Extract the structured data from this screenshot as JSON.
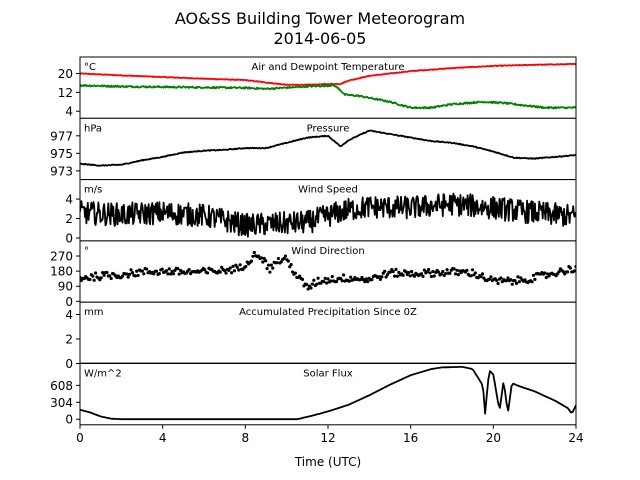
{
  "figure": {
    "title_line1": "AO&SS Building Tower Meteorogram",
    "title_line2": "2014-06-05",
    "xlabel": "Time (UTC)"
  },
  "chart_data": {
    "type": "line",
    "x_range": [
      0,
      24
    ],
    "x_ticks": [
      0,
      4,
      8,
      12,
      16,
      20,
      24
    ],
    "x_tick_labels": [
      "0",
      "4",
      "8",
      "12",
      "16",
      "20",
      "24"
    ],
    "panels": [
      {
        "id": "temp",
        "title": "Air and Dewpoint Temperature",
        "unit": "°C",
        "ylim": [
          1,
          27
        ],
        "yticks": [
          4,
          12,
          20
        ],
        "ytick_labels": [
          "4",
          "12",
          "20"
        ],
        "series": [
          {
            "color": "#ff0000",
            "style": "line",
            "noise": 0.15,
            "values": [
              [
                0,
                20
              ],
              [
                1,
                19.6
              ],
              [
                2,
                19.2
              ],
              [
                4,
                18.5
              ],
              [
                6,
                17.8
              ],
              [
                8,
                17.2
              ],
              [
                9,
                16.2
              ],
              [
                10,
                15.2
              ],
              [
                11,
                15.2
              ],
              [
                12,
                15.5
              ],
              [
                12.6,
                15.6
              ],
              [
                13,
                17
              ],
              [
                14,
                19
              ],
              [
                16,
                21
              ],
              [
                18,
                22.3
              ],
              [
                20,
                23.2
              ],
              [
                22,
                23.7
              ],
              [
                24,
                24
              ]
            ]
          },
          {
            "color": "#008000",
            "style": "line",
            "noise": 0.35,
            "values": [
              [
                0,
                15
              ],
              [
                2,
                14.5
              ],
              [
                4,
                14.3
              ],
              [
                6,
                14.1
              ],
              [
                8,
                13.9
              ],
              [
                9,
                13.5
              ],
              [
                10,
                14
              ],
              [
                11,
                14.5
              ],
              [
                12.3,
                15
              ],
              [
                12.6,
                13
              ],
              [
                12.8,
                11
              ],
              [
                13.5,
                10.5
              ],
              [
                15,
                8
              ],
              [
                16,
                5.5
              ],
              [
                17,
                5.5
              ],
              [
                18,
                7
              ],
              [
                19.5,
                8
              ],
              [
                20.5,
                7.5
              ],
              [
                21.5,
                6.5
              ],
              [
                22.5,
                5.5
              ],
              [
                24,
                5.5
              ]
            ]
          }
        ]
      },
      {
        "id": "pressure",
        "title": "Pressure",
        "unit": "hPa",
        "ylim": [
          972,
          979
        ],
        "yticks": [
          973,
          975,
          977
        ],
        "ytick_labels": [
          "973",
          "975",
          "977"
        ],
        "series": [
          {
            "color": "#000000",
            "style": "line",
            "noise": 0.05,
            "values": [
              [
                0,
                973.8
              ],
              [
                1,
                973.6
              ],
              [
                2,
                973.7
              ],
              [
                3,
                974.2
              ],
              [
                4,
                974.6
              ],
              [
                5,
                975.1
              ],
              [
                6,
                975.3
              ],
              [
                7,
                975.4
              ],
              [
                8,
                975.6
              ],
              [
                9,
                975.6
              ],
              [
                10,
                976.2
              ],
              [
                11,
                976.8
              ],
              [
                12,
                977
              ],
              [
                12.6,
                975.8
              ],
              [
                13,
                976.5
              ],
              [
                14,
                977.6
              ],
              [
                15,
                977.2
              ],
              [
                16,
                976.8
              ],
              [
                17,
                976.4
              ],
              [
                18,
                976.2
              ],
              [
                19,
                975.8
              ],
              [
                20,
                975.2
              ],
              [
                21,
                974.5
              ],
              [
                22,
                974.4
              ],
              [
                23,
                974.6
              ],
              [
                24,
                974.8
              ]
            ]
          }
        ]
      },
      {
        "id": "wind_speed",
        "title": "Wind Speed",
        "unit": "m/s",
        "ylim": [
          -0.3,
          6
        ],
        "yticks": [
          0,
          2,
          4
        ],
        "ytick_labels": [
          "0",
          "2",
          "4"
        ],
        "series": [
          {
            "color": "#000000",
            "style": "line",
            "noise": 1.2,
            "values": [
              [
                0,
                2.6
              ],
              [
                2,
                2.4
              ],
              [
                4,
                2.6
              ],
              [
                6,
                2.3
              ],
              [
                8,
                1.3
              ],
              [
                10,
                1.5
              ],
              [
                11,
                1.6
              ],
              [
                12,
                2.3
              ],
              [
                13,
                2.9
              ],
              [
                14,
                3.2
              ],
              [
                16,
                3.1
              ],
              [
                18,
                3.5
              ],
              [
                20,
                3.1
              ],
              [
                22,
                2.6
              ],
              [
                24,
                2.2
              ]
            ]
          }
        ]
      },
      {
        "id": "wind_dir",
        "title": "Wind Direction",
        "unit": "°",
        "ylim": [
          -5,
          360
        ],
        "yticks": [
          0,
          90,
          180,
          270
        ],
        "ytick_labels": [
          "0",
          "90",
          "180",
          "270"
        ],
        "series": [
          {
            "color": "#000000",
            "style": "dots",
            "noise": 22,
            "values": [
              [
                0,
                140
              ],
              [
                1,
                150
              ],
              [
                2,
                160
              ],
              [
                3,
                175
              ],
              [
                4,
                180
              ],
              [
                5,
                175
              ],
              [
                6,
                175
              ],
              [
                7,
                185
              ],
              [
                7.8,
                200
              ],
              [
                8.2,
                250
              ],
              [
                8.6,
                290
              ],
              [
                9.2,
                190
              ],
              [
                9.5,
                240
              ],
              [
                10,
                250
              ],
              [
                10.5,
                150
              ],
              [
                11,
                80
              ],
              [
                11.5,
                120
              ],
              [
                12,
                130
              ],
              [
                13,
                140
              ],
              [
                14,
                130
              ],
              [
                15,
                170
              ],
              [
                16,
                165
              ],
              [
                17,
                170
              ],
              [
                18,
                175
              ],
              [
                19,
                170
              ],
              [
                20,
                120
              ],
              [
                21,
                120
              ],
              [
                22,
                140
              ],
              [
                23,
                170
              ],
              [
                24,
                200
              ]
            ]
          }
        ]
      },
      {
        "id": "precip",
        "title": "Accumulated Precipitation Since 0Z",
        "unit": "mm",
        "ylim": [
          0,
          5
        ],
        "yticks": [
          0,
          2,
          4
        ],
        "ytick_labels": [
          "0",
          "2",
          "4"
        ],
        "series": [
          {
            "color": "#000000",
            "style": "line",
            "noise": 0,
            "values": [
              [
                0,
                0
              ],
              [
                24,
                0
              ]
            ]
          }
        ]
      },
      {
        "id": "solar",
        "title": "Solar Flux",
        "unit": "W/m^2",
        "ylim": [
          -100,
          1000
        ],
        "yticks": [
          0,
          304,
          608
        ],
        "ytick_labels": [
          "0",
          "304",
          "608"
        ],
        "series": [
          {
            "color": "#000000",
            "style": "line",
            "noise": 0,
            "values": [
              [
                0,
                170
              ],
              [
                0.5,
                120
              ],
              [
                1,
                50
              ],
              [
                1.5,
                10
              ],
              [
                2,
                0
              ],
              [
                10.5,
                0
              ],
              [
                11.2,
                60
              ],
              [
                12,
                140
              ],
              [
                13,
                260
              ],
              [
                14,
                430
              ],
              [
                15,
                620
              ],
              [
                16,
                790
              ],
              [
                17,
                900
              ],
              [
                17.5,
                930
              ],
              [
                18.5,
                940
              ],
              [
                19,
                900
              ],
              [
                19.5,
                600
              ],
              [
                19.6,
                100
              ],
              [
                19.8,
                880
              ],
              [
                20,
                800
              ],
              [
                20.3,
                150
              ],
              [
                20.5,
                700
              ],
              [
                20.7,
                100
              ],
              [
                20.9,
                650
              ],
              [
                21.2,
                600
              ],
              [
                22,
                500
              ],
              [
                23,
                330
              ],
              [
                23.6,
                200
              ],
              [
                23.8,
                100
              ],
              [
                24,
                250
              ]
            ]
          }
        ]
      }
    ]
  }
}
